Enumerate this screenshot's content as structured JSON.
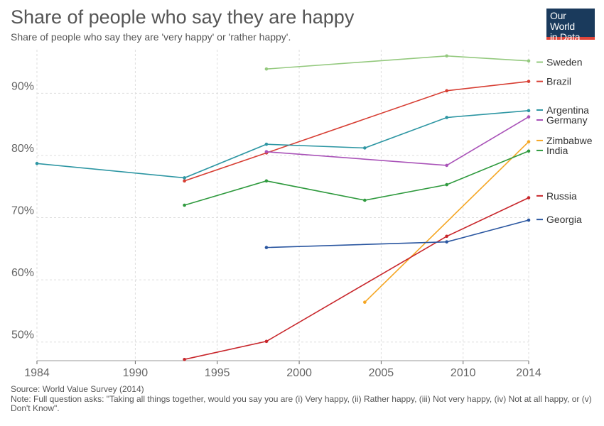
{
  "header": {
    "title": "Share of people who say they are happy",
    "subtitle": "Share of people who say they are 'very happy' or 'rather happy'.",
    "logo_line1": "Our World",
    "logo_line2": "in Data"
  },
  "footer": {
    "source": "Source: World Value Survey (2014)",
    "note": "Note: Full question asks: \"Taking all things together, would you say you are (i) Very happy, (ii) Rather happy, (iii) Not very happy, (iv) Not at all happy, or (v) Don't Know\"."
  },
  "chart_data": {
    "type": "line",
    "title": "Share of people who say they are happy",
    "subtitle": "Share of people who say they are 'very happy' or 'rather happy'.",
    "xlabel": "",
    "ylabel": "",
    "xlim": [
      1984,
      2014
    ],
    "ylim": [
      47,
      97
    ],
    "x_ticks": [
      {
        "value": 1984,
        "label": "1984"
      },
      {
        "value": 1990,
        "label": "1990"
      },
      {
        "value": 1995,
        "label": "1995"
      },
      {
        "value": 2000,
        "label": "2000"
      },
      {
        "value": 2005,
        "label": "2005"
      },
      {
        "value": 2010,
        "label": "2010"
      },
      {
        "value": 2014,
        "label": "2014"
      }
    ],
    "y_ticks": [
      {
        "value": 50,
        "label": "50%"
      },
      {
        "value": 60,
        "label": "60%"
      },
      {
        "value": 70,
        "label": "70%"
      },
      {
        "value": 80,
        "label": "80%"
      },
      {
        "value": 90,
        "label": "90%"
      }
    ],
    "grid": true,
    "legend": "right",
    "series": [
      {
        "name": "Sweden",
        "color": "#94c97e",
        "label_y": 95.0,
        "points": [
          [
            1998,
            93.9
          ],
          [
            2009,
            96.0
          ],
          [
            2014,
            95.2
          ]
        ]
      },
      {
        "name": "Brazil",
        "color": "#d73e33",
        "label_y": 91.9,
        "points": [
          [
            1993,
            75.9
          ],
          [
            1998,
            80.4
          ],
          [
            2009,
            90.4
          ],
          [
            2014,
            91.9
          ]
        ]
      },
      {
        "name": "Argentina",
        "color": "#2d96a3",
        "label_y": 87.3,
        "points": [
          [
            1984,
            78.7
          ],
          [
            1993,
            76.4
          ],
          [
            1998,
            81.8
          ],
          [
            2004,
            81.2
          ],
          [
            2009,
            86.1
          ],
          [
            2014,
            87.2
          ]
        ]
      },
      {
        "name": "Germany",
        "color": "#a952b8",
        "label_y": 85.7,
        "points": [
          [
            1998,
            80.6
          ],
          [
            2009,
            78.4
          ],
          [
            2014,
            86.2
          ]
        ]
      },
      {
        "name": "Zimbabwe",
        "color": "#f5a623",
        "label_y": 82.4,
        "points": [
          [
            2004,
            56.4
          ],
          [
            2014,
            82.2
          ]
        ]
      },
      {
        "name": "India",
        "color": "#2f9a3e",
        "label_y": 80.8,
        "points": [
          [
            1993,
            72.0
          ],
          [
            1998,
            75.9
          ],
          [
            2004,
            72.8
          ],
          [
            2009,
            75.3
          ],
          [
            2014,
            80.7
          ]
        ]
      },
      {
        "name": "Russia",
        "color": "#c8262b",
        "label_y": 73.5,
        "points": [
          [
            1993,
            47.2
          ],
          [
            1998,
            50.1
          ],
          [
            2009,
            67.0
          ],
          [
            2014,
            73.2
          ]
        ]
      },
      {
        "name": "Georgia",
        "color": "#2a56a0",
        "label_y": 69.7,
        "points": [
          [
            1998,
            65.2
          ],
          [
            2009,
            66.1
          ],
          [
            2014,
            69.6
          ]
        ]
      }
    ]
  }
}
